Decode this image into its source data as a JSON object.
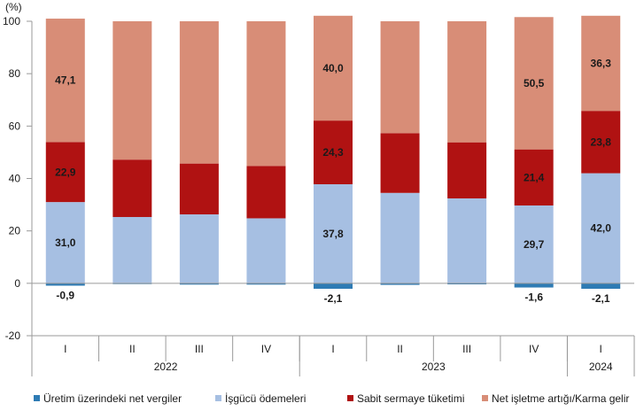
{
  "chart_data": {
    "type": "bar",
    "stacked": true,
    "unit": "(%)",
    "ylim": [
      -20,
      100
    ],
    "yticks": [
      -20,
      0,
      20,
      40,
      60,
      80,
      100
    ],
    "categories": [
      "I",
      "II",
      "III",
      "IV",
      "I",
      "II",
      "III",
      "IV",
      "I"
    ],
    "groups": [
      {
        "label": "2022",
        "count": 4
      },
      {
        "label": "2023",
        "count": 4
      },
      {
        "label": "2024",
        "count": 1
      }
    ],
    "series": [
      {
        "name": "Üretim üzerindeki net vergiler",
        "color": "#2e7bb4",
        "values": [
          -0.9,
          -0.3,
          -0.5,
          -0.5,
          -2.1,
          -0.6,
          -0.4,
          -1.6,
          -2.1
        ],
        "labels": [
          "-0,9",
          "",
          "",
          "",
          "-2,1",
          "",
          "",
          "-1,6",
          "-2,1"
        ]
      },
      {
        "name": "İşgücü ödemeleri",
        "color": "#a6bfe2",
        "values": [
          31.0,
          25.3,
          26.3,
          24.8,
          37.8,
          34.5,
          32.4,
          29.7,
          42.0
        ],
        "labels": [
          "31,0",
          "",
          "",
          "",
          "37,8",
          "",
          "",
          "29,7",
          "42,0"
        ]
      },
      {
        "name": "Sabit sermaye tüketimi",
        "color": "#b01212",
        "values": [
          22.9,
          21.9,
          19.4,
          20.0,
          24.3,
          22.8,
          21.4,
          21.4,
          23.8
        ],
        "labels": [
          "22,9",
          "",
          "",
          "",
          "24,3",
          "",
          "",
          "21,4",
          "23,8"
        ]
      },
      {
        "name": "Net işletme artığı/Karma gelir",
        "color": "#d88d77",
        "values": [
          47.1,
          52.8,
          54.3,
          55.2,
          40.0,
          42.7,
          46.2,
          50.5,
          36.3
        ],
        "labels": [
          "47,1",
          "",
          "",
          "",
          "40,0",
          "",
          "",
          "50,5",
          "36,3"
        ]
      }
    ]
  }
}
